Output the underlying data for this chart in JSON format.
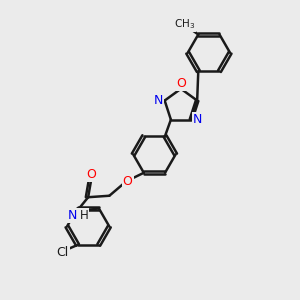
{
  "bg_color": "#ebebeb",
  "bond_color": "#1a1a1a",
  "bond_width": 1.8,
  "atom_colors": {
    "O": "#ff0000",
    "N": "#0000ee",
    "Cl": "#1a1a1a",
    "C": "#1a1a1a",
    "H": "#1a1a1a"
  },
  "figsize": [
    3.0,
    3.0
  ],
  "dpi": 100
}
